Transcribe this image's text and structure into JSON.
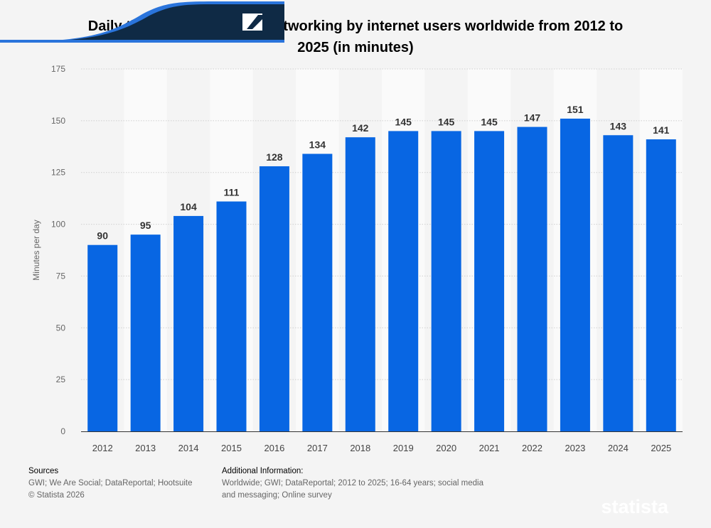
{
  "chart_data": {
    "type": "bar",
    "title": "Daily time spent on social networking by internet users worldwide from 2012 to 2025 (in minutes)",
    "xlabel": "",
    "ylabel": "Minutes per day",
    "ylim": [
      0,
      175
    ],
    "yticks": [
      0,
      25,
      50,
      75,
      100,
      125,
      150,
      175
    ],
    "grid": true,
    "categories": [
      "2012",
      "2013",
      "2014",
      "2015",
      "2016",
      "2017",
      "2018",
      "2019",
      "2020",
      "2021",
      "2022",
      "2023",
      "2024",
      "2025"
    ],
    "values": [
      90,
      95,
      104,
      111,
      128,
      134,
      142,
      145,
      145,
      145,
      147,
      151,
      143,
      141
    ],
    "bar_color": "#0866e3"
  },
  "footer": {
    "sources_heading": "Sources",
    "sources": "GWI; We Are Social; DataReportal; Hootsuite",
    "copyright": "© Statista 2026",
    "additional_heading": "Additional Information:",
    "additional_line1": "Worldwide; GWI; DataReportal; 2012 to 2025; 16-64 years; social media",
    "additional_line2": "and messaging; Online survey"
  },
  "brand": {
    "logo": "statista",
    "dark": "#0f2a45",
    "accent": "#2a74db"
  }
}
